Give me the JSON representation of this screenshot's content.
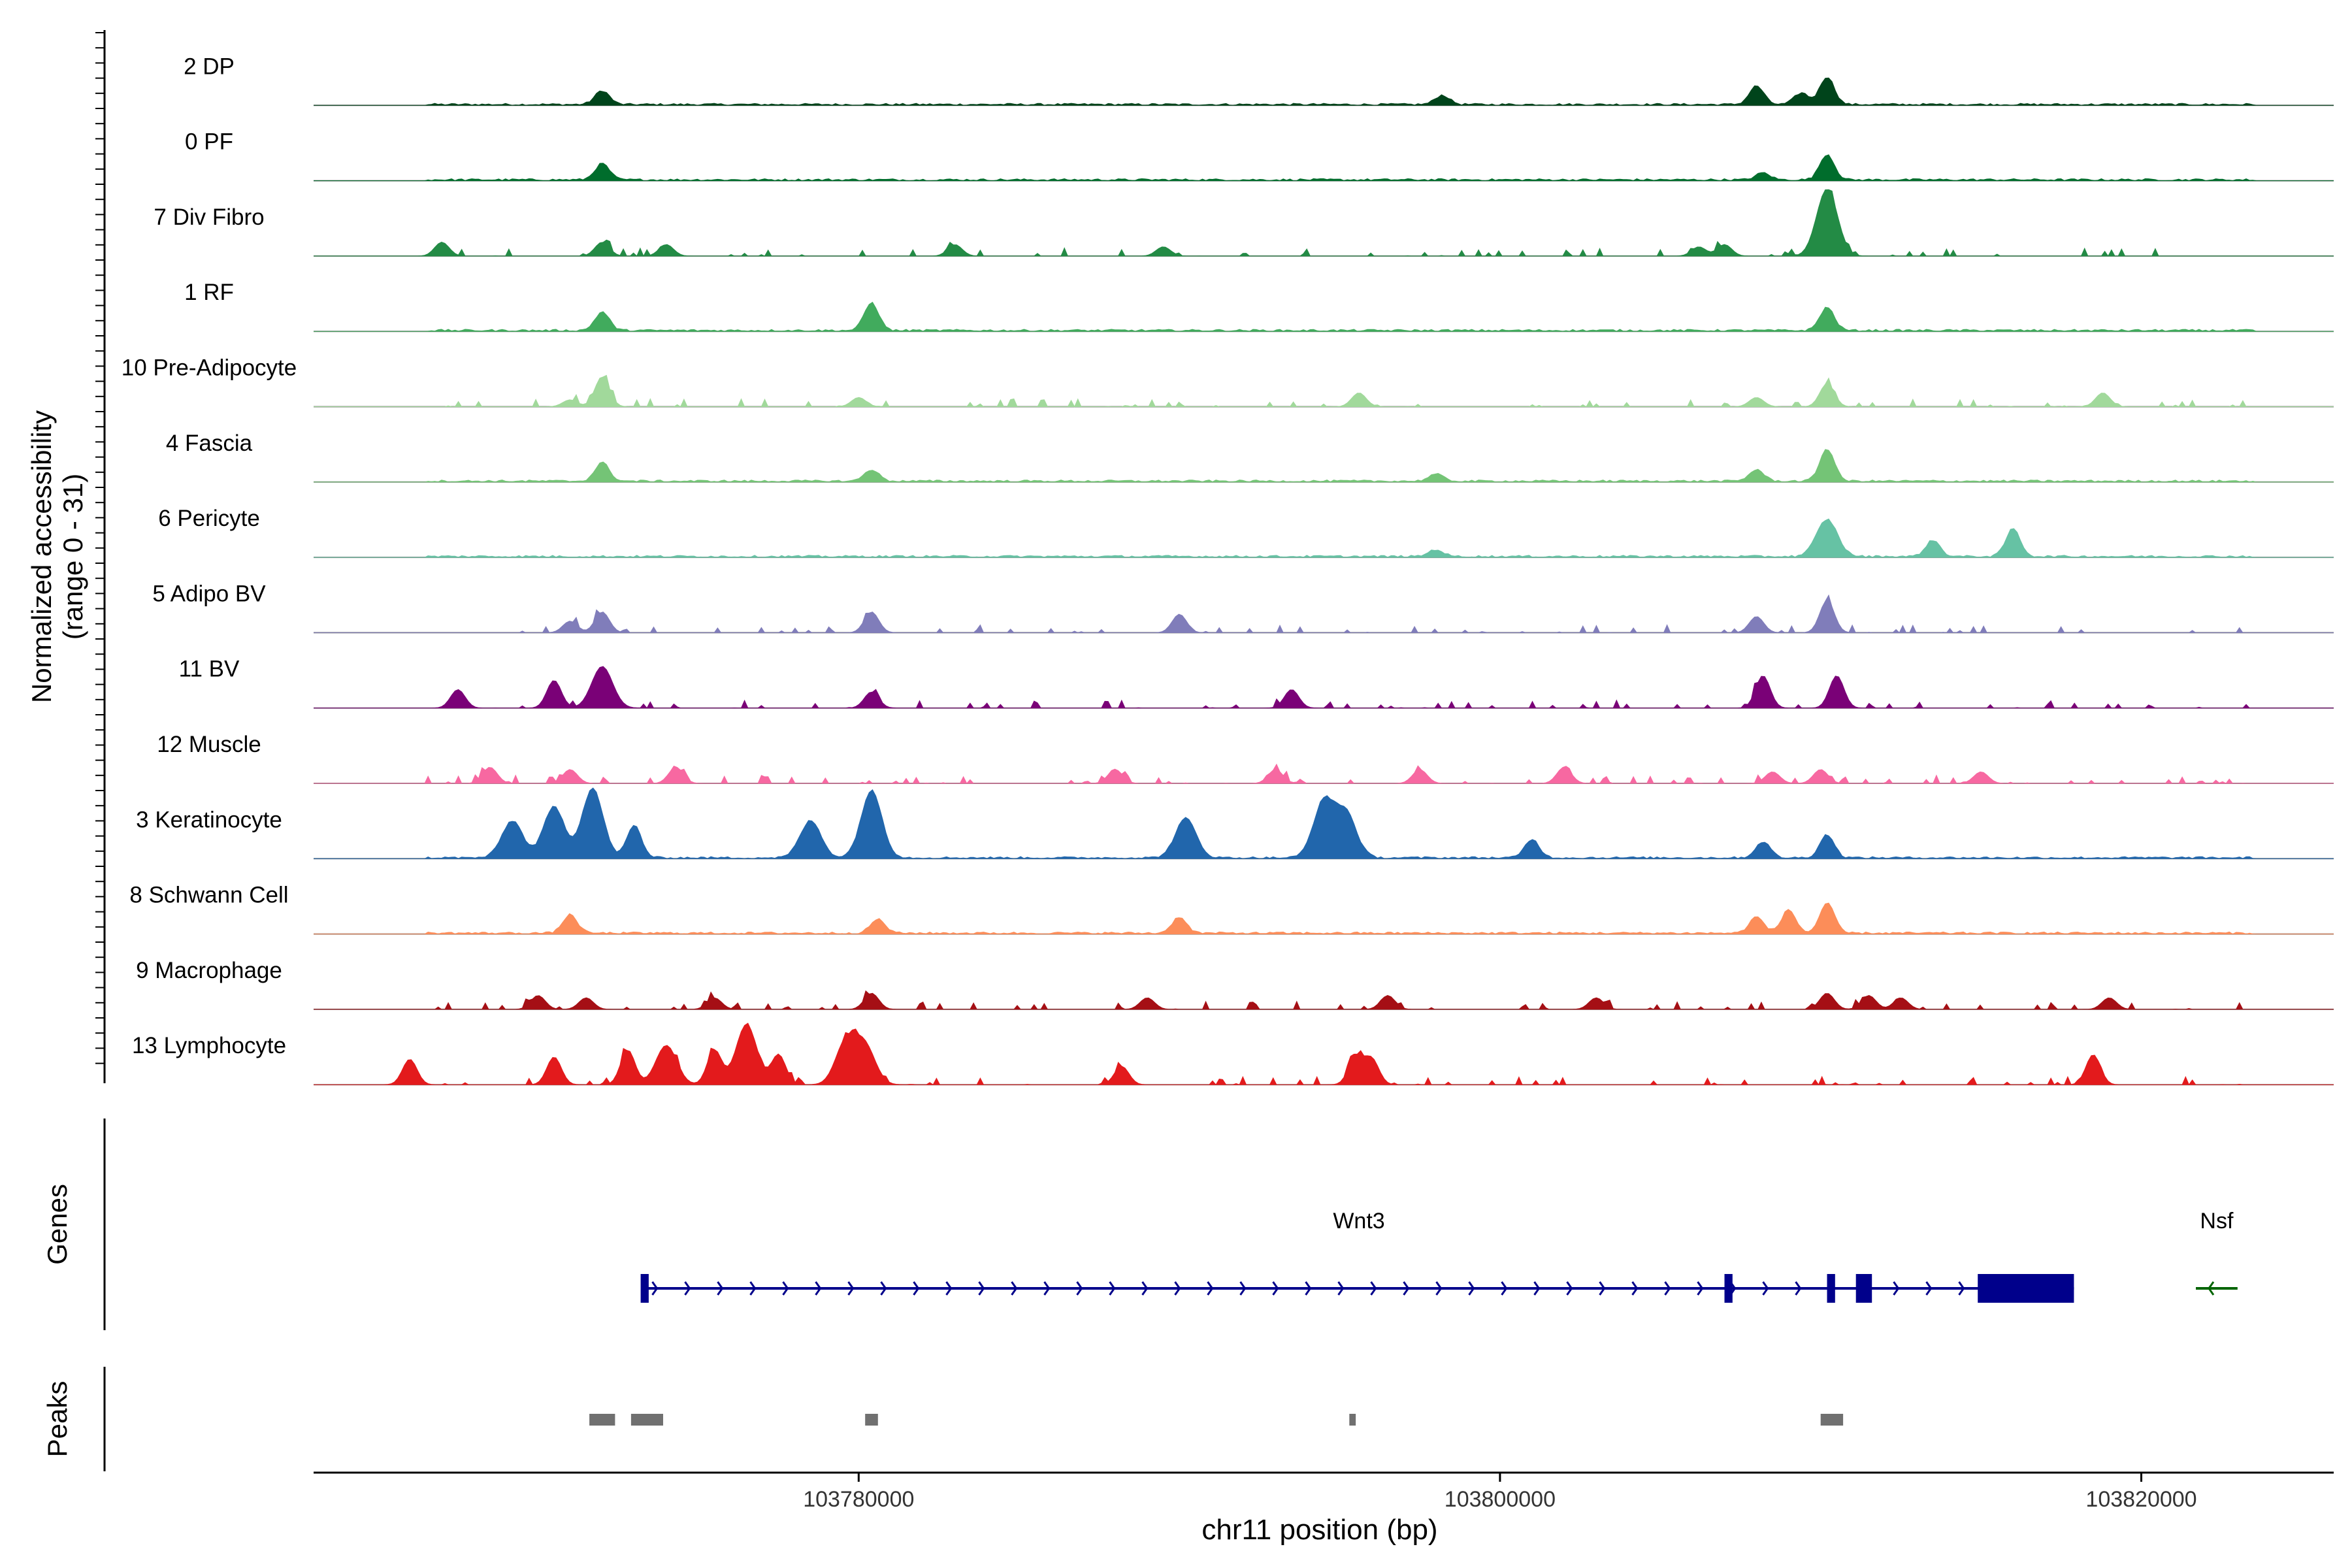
{
  "chart_data": {
    "type": "area",
    "title": "",
    "region": "chr11",
    "x_range": [
      103763000,
      103826000
    ],
    "xlabel": "chr11 position (bp)",
    "xticks": [
      103780000,
      103800000,
      103820000
    ],
    "xtick_labels": [
      "103780000",
      "103800000",
      "103820000"
    ],
    "ylabel": [
      "Normalized accessibility",
      "(range 0 - 31)"
    ],
    "y_range": [
      0,
      31
    ],
    "track_panels": [
      "Genes",
      "Peaks"
    ],
    "colors": {
      "baseline": "#7f7f7f",
      "gene_wnt3": "#00008B",
      "gene_nsf": "#006400",
      "peak": "#707070",
      "axis": "#000000"
    },
    "series": [
      {
        "name": "2 DP",
        "color": "#00441b",
        "peaks": [
          [
            103772000,
            6
          ],
          [
            103798200,
            4
          ],
          [
            103808000,
            8
          ],
          [
            103810200,
            12
          ],
          [
            103809400,
            5
          ]
        ]
      },
      {
        "name": "0 PF",
        "color": "#006d2c",
        "peaks": [
          [
            103772000,
            7
          ],
          [
            103810200,
            11
          ],
          [
            103808200,
            3
          ]
        ]
      },
      {
        "name": "7 Div Fibro",
        "color": "#238b45",
        "peaks": [
          [
            103767000,
            6
          ],
          [
            103772000,
            6
          ],
          [
            103774000,
            5
          ],
          [
            103783000,
            5
          ],
          [
            103789500,
            4
          ],
          [
            103810200,
            29
          ],
          [
            103807000,
            5
          ],
          [
            103806200,
            4
          ]
        ]
      },
      {
        "name": "1 RF",
        "color": "#41ab5d",
        "peaks": [
          [
            103772000,
            8
          ],
          [
            103780400,
            12
          ],
          [
            103810200,
            10
          ]
        ]
      },
      {
        "name": "10 Pre-Adipocyte",
        "color": "#a1d99b",
        "peaks": [
          [
            103772000,
            13
          ],
          [
            103771000,
            3
          ],
          [
            103780000,
            4
          ],
          [
            103795600,
            6
          ],
          [
            103810200,
            10
          ],
          [
            103808000,
            4
          ],
          [
            103818800,
            6
          ]
        ]
      },
      {
        "name": "4 Fascia",
        "color": "#74c476",
        "peaks": [
          [
            103772000,
            8
          ],
          [
            103780400,
            5
          ],
          [
            103810200,
            14
          ],
          [
            103808000,
            5
          ],
          [
            103798000,
            3
          ]
        ]
      },
      {
        "name": "6 Pericyte",
        "color": "#66c2a4",
        "peaks": [
          [
            103810200,
            16
          ],
          [
            103816000,
            12
          ],
          [
            103813500,
            7
          ],
          [
            103798000,
            3
          ]
        ]
      },
      {
        "name": "5 Adipo BV",
        "color": "#807dba",
        "peaks": [
          [
            103772000,
            9
          ],
          [
            103780400,
            9
          ],
          [
            103790000,
            8
          ],
          [
            103810200,
            14
          ],
          [
            103808000,
            7
          ],
          [
            103771000,
            5
          ]
        ]
      },
      {
        "name": "11 BV",
        "color": "#7a0177",
        "peaks": [
          [
            103772000,
            18
          ],
          [
            103770500,
            12
          ],
          [
            103767500,
            8
          ],
          [
            103780400,
            7
          ],
          [
            103808200,
            14
          ],
          [
            103810500,
            14
          ],
          [
            103793500,
            8
          ]
        ]
      },
      {
        "name": "12 Muscle",
        "color": "#f768a1",
        "peaks": [
          [
            103768500,
            7
          ],
          [
            103771000,
            6
          ],
          [
            103774300,
            7
          ],
          [
            103788000,
            6
          ],
          [
            103793000,
            6
          ],
          [
            103797500,
            6
          ],
          [
            103802000,
            7
          ],
          [
            103808500,
            5
          ],
          [
            103810000,
            6
          ],
          [
            103815000,
            5
          ]
        ]
      },
      {
        "name": "3 Keratinocyte",
        "color": "#2166ac",
        "peaks": [
          [
            103770500,
            22
          ],
          [
            103771700,
            30
          ],
          [
            103773000,
            14
          ],
          [
            103769200,
            16
          ],
          [
            103778500,
            16
          ],
          [
            103780400,
            29
          ],
          [
            103790200,
            17
          ],
          [
            103794500,
            24
          ],
          [
            103795200,
            19
          ],
          [
            103801000,
            8
          ],
          [
            103808200,
            7
          ],
          [
            103810200,
            10
          ]
        ]
      },
      {
        "name": "8 Schwann Cell",
        "color": "#fc8d59",
        "peaks": [
          [
            103771000,
            8
          ],
          [
            103780600,
            6
          ],
          [
            103790000,
            7
          ],
          [
            103810200,
            13
          ],
          [
            103809000,
            10
          ],
          [
            103808000,
            7
          ]
        ]
      },
      {
        "name": "9 Macrophage",
        "color": "#a50f15",
        "peaks": [
          [
            103770000,
            6
          ],
          [
            103771500,
            5
          ],
          [
            103775500,
            5
          ],
          [
            103780400,
            7
          ],
          [
            103789000,
            5
          ],
          [
            103796500,
            6
          ],
          [
            103803000,
            5
          ],
          [
            103810200,
            7
          ],
          [
            103811500,
            6
          ],
          [
            103812500,
            5
          ],
          [
            103819000,
            5
          ]
        ]
      },
      {
        "name": "13 Lymphocyte",
        "color": "#e31a1c",
        "peaks": [
          [
            103766000,
            11
          ],
          [
            103770500,
            12
          ],
          [
            103772800,
            15
          ],
          [
            103774000,
            17
          ],
          [
            103775500,
            15
          ],
          [
            103776500,
            26
          ],
          [
            103777500,
            13
          ],
          [
            103779600,
            18
          ],
          [
            103780200,
            16
          ],
          [
            103788200,
            8
          ],
          [
            103795500,
            12
          ],
          [
            103796000,
            11
          ],
          [
            103818500,
            13
          ]
        ]
      }
    ],
    "genes": [
      {
        "name": "Wnt3",
        "strand": "+",
        "start": 103773300,
        "end": 103817900,
        "exons": [
          [
            103773200,
            103773450
          ],
          [
            103807000,
            103807250
          ],
          [
            103810200,
            103810450
          ],
          [
            103811100,
            103811600
          ],
          [
            103814900,
            103817900
          ]
        ]
      },
      {
        "name": "Nsf",
        "strand": "-",
        "start": 103821700,
        "end": 103823000,
        "exons": []
      }
    ],
    "peaks_track": [
      [
        103771600,
        103772400
      ],
      [
        103772900,
        103773900
      ],
      [
        103780200,
        103780600
      ],
      [
        103795300,
        103795500
      ],
      [
        103810000,
        103810700
      ]
    ]
  }
}
